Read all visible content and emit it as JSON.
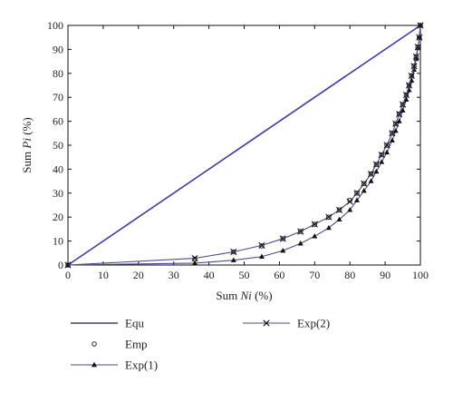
{
  "chart_data": {
    "type": "line",
    "title": "",
    "xlabel": {
      "prefix": "Sum ",
      "var": "Ni",
      "suffix": " (%)"
    },
    "ylabel": {
      "prefix": "Sum ",
      "var": "Pi",
      "suffix": " (%)"
    },
    "xlim": [
      0,
      100
    ],
    "ylim": [
      0,
      100
    ],
    "xticks": [
      "0",
      "10",
      "20",
      "30",
      "40",
      "50",
      "60",
      "70",
      "80",
      "90",
      "100"
    ],
    "yticks": [
      "0",
      "10",
      "20",
      "30",
      "40",
      "50",
      "60",
      "70",
      "80",
      "90",
      "100"
    ],
    "grid": false,
    "legend_position": "bottom",
    "colors": {
      "equ": "#3d3a9e",
      "exp": "#4a4a8a",
      "marker": "#111111"
    },
    "series": [
      {
        "name": "Equ",
        "style": "line",
        "x": [
          0,
          100
        ],
        "y": [
          0,
          100
        ]
      },
      {
        "name": "Emp",
        "style": "circle",
        "x": [
          0,
          36,
          47,
          55,
          61,
          66,
          70,
          74,
          77,
          80,
          82,
          84,
          86,
          87.5,
          89,
          90.5,
          92,
          93,
          94,
          95,
          96,
          96.8,
          97.5,
          98.2,
          98.8,
          99.3,
          99.7,
          100
        ],
        "y": [
          0,
          2.5,
          5.5,
          8,
          11,
          14,
          17,
          20,
          23,
          27,
          30,
          34,
          38,
          42,
          46,
          50,
          55,
          59,
          63,
          67,
          71,
          75,
          79,
          83,
          87,
          91,
          95,
          100
        ]
      },
      {
        "name": "Exp(1)",
        "style": "triangle",
        "x": [
          0,
          36,
          47,
          55,
          61,
          66,
          70,
          74,
          77,
          80,
          82,
          84,
          86,
          87.5,
          89,
          90.5,
          92,
          93,
          94,
          95,
          96,
          96.8,
          97.5,
          98.2,
          98.8,
          99.3,
          99.7,
          100
        ],
        "y": [
          0,
          0.8,
          2,
          3.5,
          6,
          9,
          12,
          15.5,
          19,
          23,
          27,
          31,
          35,
          39,
          43,
          47,
          52,
          56,
          60,
          64.5,
          69,
          73,
          77,
          81.5,
          86,
          90.5,
          95,
          100
        ]
      },
      {
        "name": "Exp(2)",
        "style": "cross",
        "x": [
          0,
          36,
          47,
          55,
          61,
          66,
          70,
          74,
          77,
          80,
          82,
          84,
          86,
          87.5,
          89,
          90.5,
          92,
          93,
          94,
          95,
          96,
          96.8,
          97.5,
          98.2,
          98.8,
          99.3,
          99.7,
          100
        ],
        "y": [
          0,
          2.8,
          5.5,
          8.2,
          11,
          14,
          17,
          20,
          23,
          26.5,
          30,
          34,
          38,
          42,
          46,
          50,
          55,
          59,
          63,
          67,
          71,
          75,
          79,
          83,
          87,
          91,
          95,
          100
        ]
      }
    ]
  }
}
